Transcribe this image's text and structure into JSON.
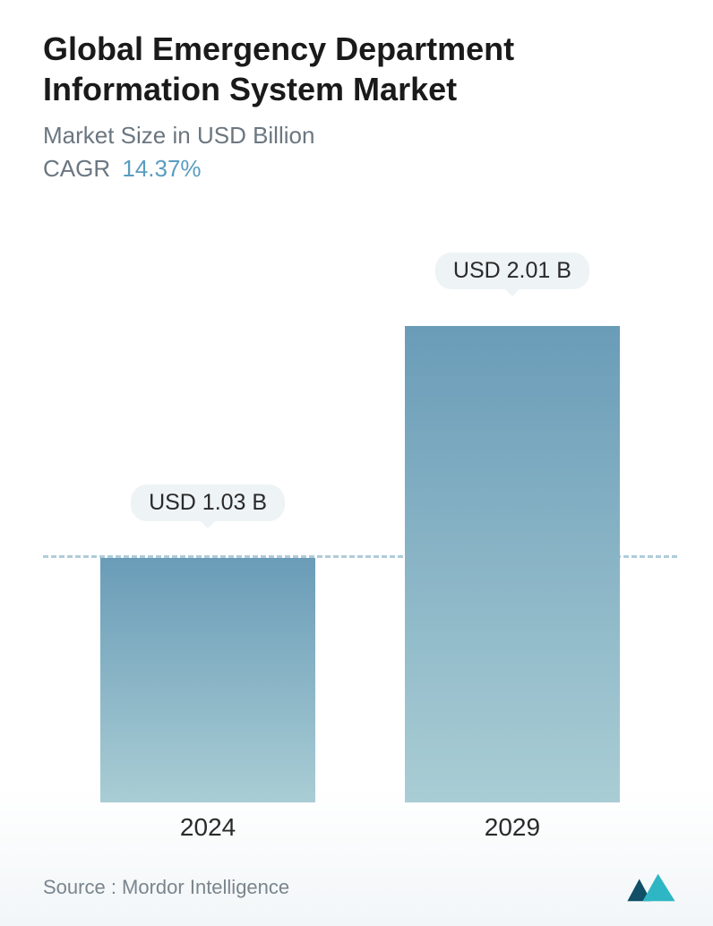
{
  "title": "Global Emergency Department Information System Market",
  "subtitle": "Market Size in USD Billion",
  "cagr_label": "CAGR",
  "cagr_value": "14.37%",
  "chart": {
    "type": "bar",
    "categories": [
      "2024",
      "2029"
    ],
    "values": [
      1.03,
      2.01
    ],
    "value_labels": [
      "USD 1.03 B",
      "USD 2.01 B"
    ],
    "y_max": 2.01,
    "reference_line_value": 1.03,
    "bar_gradient_top": "#6a9cb8",
    "bar_gradient_bottom": "#a9cdd4",
    "reference_line_color": "#8fb7c9",
    "label_bg_color": "#eef3f5",
    "label_text_color": "#2a2a2a",
    "bar_positions_pct": [
      26,
      74
    ],
    "bar_width_pct": 34,
    "plot_height_ratio": 0.78,
    "x_label_fontsize": 28,
    "value_label_fontsize": 25,
    "background_color": "#ffffff"
  },
  "source_text": "Source :  Mordor Intelligence",
  "logo_colors": {
    "dark": "#104f66",
    "light": "#2fb6c4"
  },
  "title_fontsize": 36,
  "subtitle_fontsize": 26,
  "title_color": "#1a1a1a",
  "subtitle_color": "#6b7680",
  "cagr_value_color": "#5a9cc0"
}
